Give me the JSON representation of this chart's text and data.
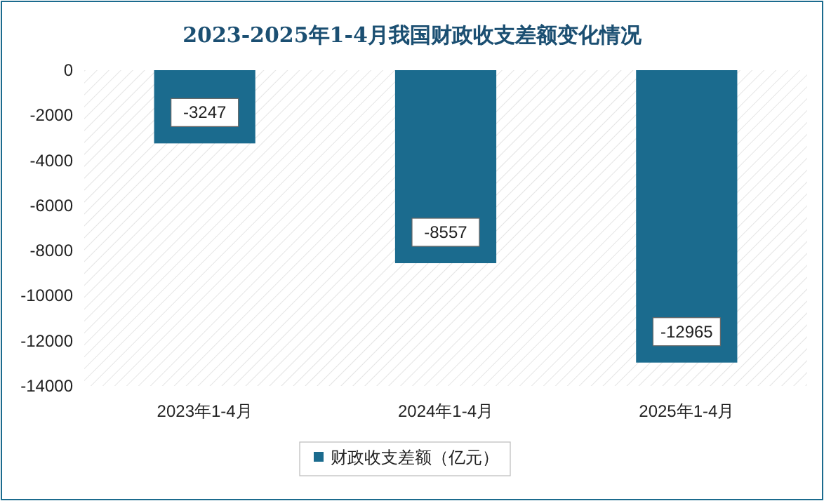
{
  "chart_data": {
    "type": "bar",
    "title": "2023-2025年1-4月我国财政收支差额变化情况",
    "categories": [
      "2023年1-4月",
      "2024年1-4月",
      "2025年1-4月"
    ],
    "series": [
      {
        "name": "财政收支差额（亿元）",
        "color": "#1b6b8e",
        "values": [
          -3247,
          -8557,
          -12965
        ]
      }
    ],
    "ylim": [
      -14000,
      0
    ],
    "yticks": [
      0,
      -2000,
      -4000,
      -6000,
      -8000,
      -10000,
      -12000,
      -14000
    ],
    "data_labels": true,
    "legend": "bottom",
    "grid": false
  }
}
